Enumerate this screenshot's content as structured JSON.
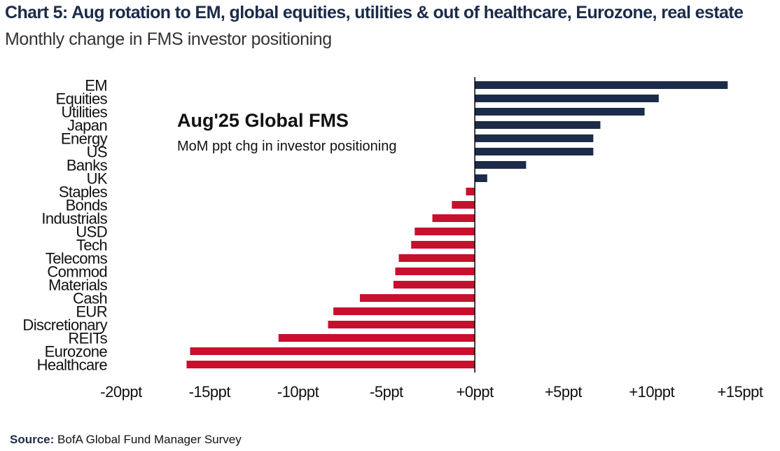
{
  "header": {
    "title": "Chart 5: Aug rotation to EM, global equities, utilities & out of healthcare, Eurozone, real estate",
    "subtitle": "Monthly change in FMS investor positioning"
  },
  "source": {
    "label": "Source:",
    "text": "BofA Global Fund Manager Survey"
  },
  "colors": {
    "positive": "#1c2b4a",
    "negative": "#c8102e",
    "axis": "#000000"
  },
  "chart_data": {
    "type": "bar",
    "orientation": "horizontal",
    "title": "Aug'25 Global FMS",
    "subtitle": "MoM ppt chg in investor positioning",
    "categories": [
      "EM",
      "Equities",
      "Utilities",
      "Japan",
      "Energy",
      "US",
      "Banks",
      "UK",
      "Staples",
      "Bonds",
      "Industrials",
      "USD",
      "Tech",
      "Telecoms",
      "Commod",
      "Materials",
      "Cash",
      "EUR",
      "Discretionary",
      "REITs",
      "Eurozone",
      "Healthcare"
    ],
    "values": [
      14.3,
      10.4,
      9.6,
      7.1,
      6.7,
      6.7,
      2.9,
      0.7,
      -0.5,
      -1.3,
      -2.4,
      -3.4,
      -3.6,
      -4.3,
      -4.5,
      -4.6,
      -6.5,
      -8.0,
      -8.3,
      -11.1,
      -16.1,
      -16.3
    ],
    "xlim": [
      -20,
      15
    ],
    "xticks": [
      -20,
      -15,
      -10,
      -5,
      0,
      5,
      10,
      15
    ],
    "xtick_labels": [
      "-20ppt",
      "-15ppt",
      "-10ppt",
      "-5ppt",
      "+0ppt",
      "+5ppt",
      "+10ppt",
      "+15ppt"
    ],
    "xlabel": "",
    "ylabel": "",
    "grid": false
  }
}
